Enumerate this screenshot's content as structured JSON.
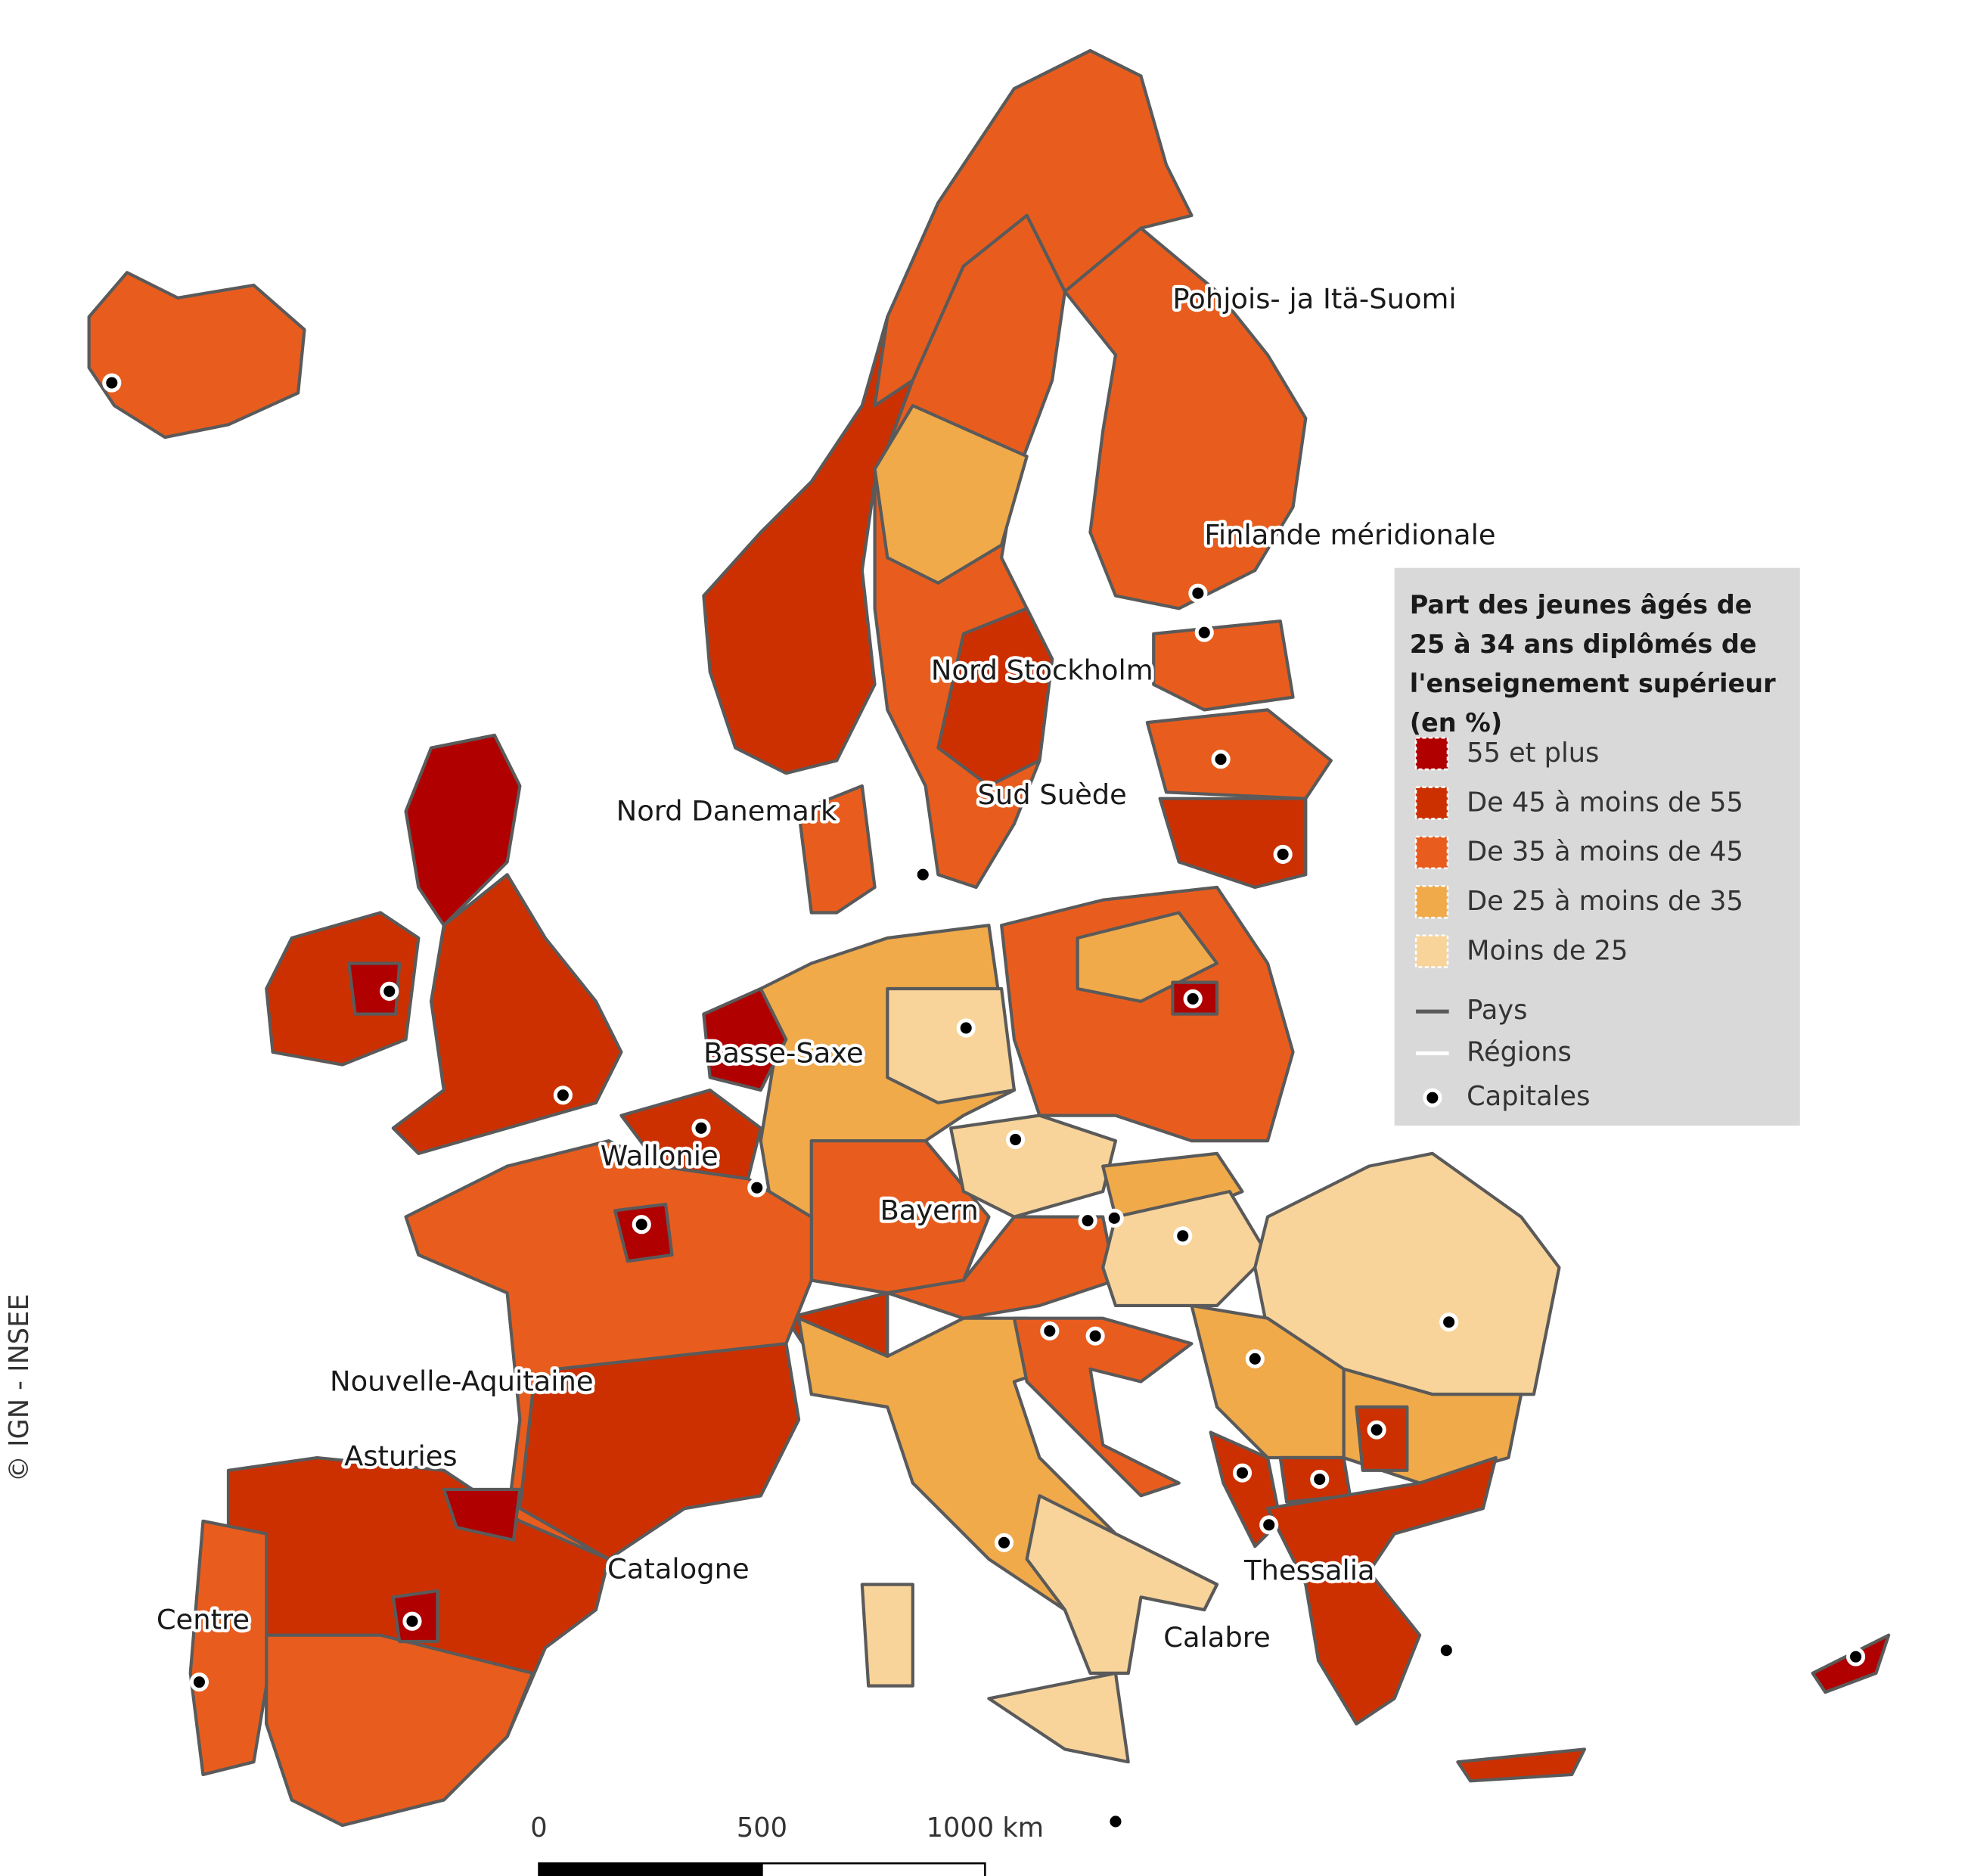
{
  "legend": {
    "title": "Part des jeunes âgés de 25 à 34 ans diplômés de l'enseignement supérieur (en %)",
    "classes": [
      {
        "label": "55 et plus",
        "color": "#b00000"
      },
      {
        "label": "De 45 à moins de 55",
        "color": "#cc3000"
      },
      {
        "label": "De 35 à moins de 45",
        "color": "#e85d1e"
      },
      {
        "label": "De 25 à moins de 35",
        "color": "#f0aa4a"
      },
      {
        "label": "Moins de 25",
        "color": "#f8d49a"
      }
    ],
    "lines": [
      {
        "label": "Pays"
      },
      {
        "label": "Régions"
      }
    ],
    "points": [
      {
        "label": "Capitales"
      }
    ]
  },
  "region_labels": [
    {
      "text": "Pohjois- ja Itä-Suomi"
    },
    {
      "text": "Finlande méridionale"
    },
    {
      "text": "Nord Stockholm"
    },
    {
      "text": "Sud Suède"
    },
    {
      "text": "Nord Danemark"
    },
    {
      "text": "Basse-Saxe"
    },
    {
      "text": "Wallonie"
    },
    {
      "text": "Bayern"
    },
    {
      "text": "Nouvelle-Aquitaine"
    },
    {
      "text": "Asturies"
    },
    {
      "text": "Catalogne"
    },
    {
      "text": "Centre"
    },
    {
      "text": "Thessalia"
    },
    {
      "text": "Calabre"
    }
  ],
  "scale_bar": {
    "ticks": [
      {
        "value": 0,
        "label": "0"
      },
      {
        "value": 500,
        "label": "500"
      },
      {
        "value": 1000,
        "label": "1000 km"
      }
    ]
  },
  "credit": "© IGN - INSEE"
}
